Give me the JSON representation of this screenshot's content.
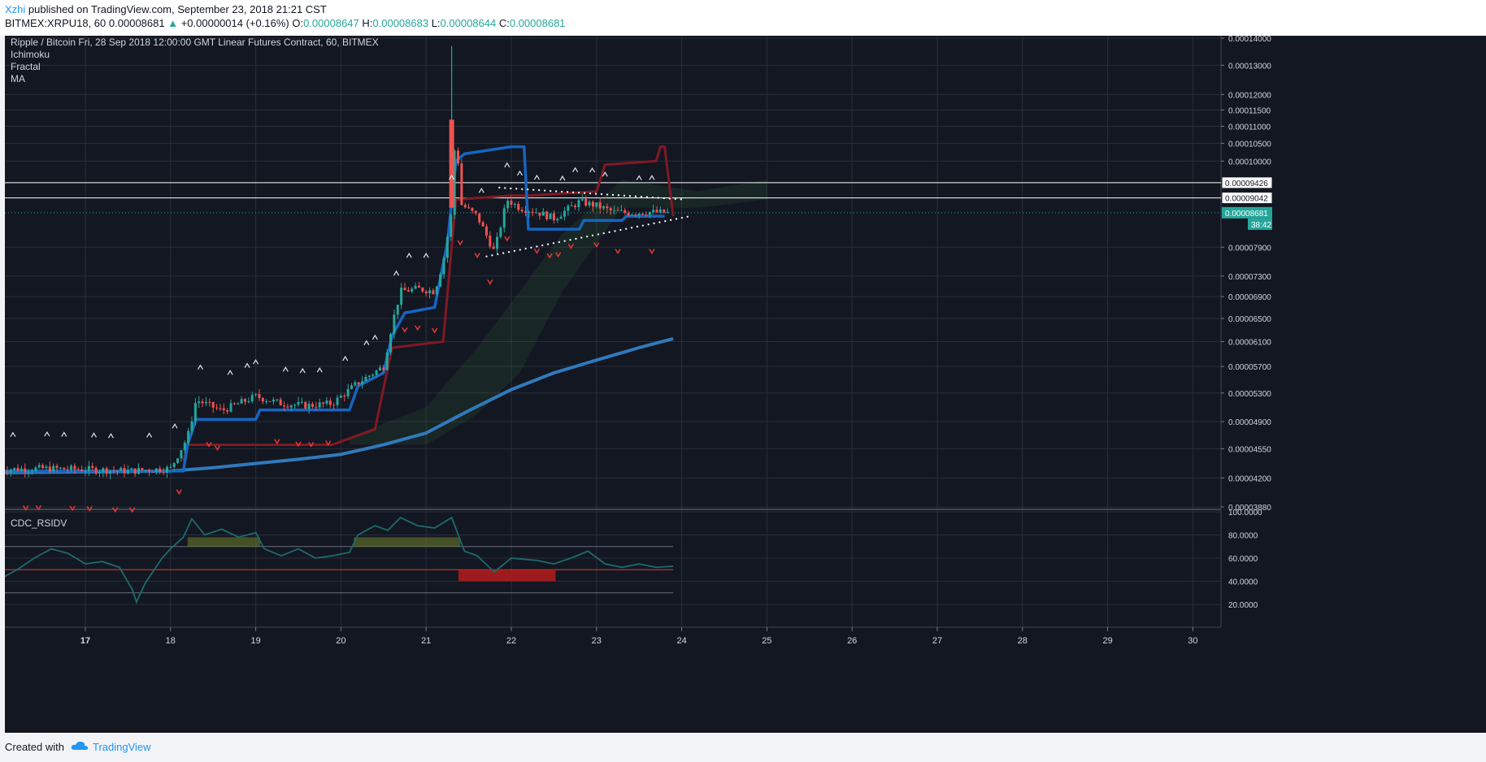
{
  "header": {
    "author": "Xzhi",
    "published": " published on TradingView.com, September 23, 2018 21:21 CST",
    "symbol": "BITMEX:XRPU18, 60",
    "last": "0.00008681",
    "change": "+0.00000014 (+0.16%)",
    "open_label": "O:",
    "open": "0.00008647",
    "high_label": "H:",
    "high": "0.00008683",
    "low_label": "L:",
    "low": "0.00008644",
    "close_label": "C:",
    "close": "0.00008681"
  },
  "legend": {
    "title": "Ripple / Bitcoin Fri, 28 Sep 2018 12:00:00 GMT Linear Futures Contract, 60, BITMEX",
    "indicators": [
      "Ichimoku",
      "Fractal",
      "MA"
    ]
  },
  "indicator_pane": {
    "name": "CDC_RSIDV"
  },
  "footer": {
    "created": "Created with",
    "brand": "TradingView"
  },
  "colors": {
    "background": "#131722",
    "grid": "#2a2e39",
    "up": "#26a69a",
    "down": "#ef5350",
    "kijun": "#1565c0",
    "senkou_b": "#801922",
    "ma": "#3179bb",
    "rsi": "#1d6b6b",
    "rsi_level": "#e53935"
  },
  "icons": [
    "tradingview-cloud-icon"
  ],
  "chart_data": [
    {
      "type": "candlestick",
      "title": "Ripple / Bitcoin",
      "y_scale": "log",
      "y_ticks": [
        "0.00014000",
        "0.00013000",
        "0.00012000",
        "0.00011500",
        "0.00011000",
        "0.00010500",
        "0.00010000",
        "0.00007900",
        "0.00007300",
        "0.00006900",
        "0.00006500",
        "0.00006100",
        "0.00005700",
        "0.00005300",
        "0.00004900",
        "0.00004550",
        "0.00004200",
        "0.00003880"
      ],
      "x_ticks": [
        "17",
        "18",
        "19",
        "20",
        "21",
        "22",
        "23",
        "24",
        "25",
        "26",
        "27",
        "28",
        "29",
        "30"
      ],
      "horizontal_lines": [
        {
          "label": "0.00009426",
          "value": 9.426e-05
        },
        {
          "label": "0.00009042",
          "value": 9.042e-05
        }
      ],
      "current_price": {
        "label": "0.00008681",
        "value": 8.681e-05,
        "countdown": "38:42"
      },
      "ohlc_last": {
        "open": 8.647e-05,
        "high": 8.683e-05,
        "low": 8.644e-05,
        "close": 8.681e-05
      },
      "price_path": [
        {
          "day": 16.0,
          "price": 4.3e-05
        },
        {
          "day": 16.5,
          "price": 4.31e-05
        },
        {
          "day": 17.0,
          "price": 4.3e-05
        },
        {
          "day": 17.5,
          "price": 4.28e-05
        },
        {
          "day": 18.0,
          "price": 4.31e-05
        },
        {
          "day": 18.2,
          "price": 4.7e-05
        },
        {
          "day": 18.3,
          "price": 5.2e-05
        },
        {
          "day": 18.6,
          "price": 5.05e-05
        },
        {
          "day": 19.0,
          "price": 5.25e-05
        },
        {
          "day": 19.3,
          "price": 5.15e-05
        },
        {
          "day": 19.6,
          "price": 5.12e-05
        },
        {
          "day": 19.9,
          "price": 5.15e-05
        },
        {
          "day": 20.2,
          "price": 5.45e-05
        },
        {
          "day": 20.5,
          "price": 5.7e-05
        },
        {
          "day": 20.6,
          "price": 6.4e-05
        },
        {
          "day": 20.7,
          "price": 7e-05
        },
        {
          "day": 20.9,
          "price": 7.05e-05
        },
        {
          "day": 21.1,
          "price": 7e-05
        },
        {
          "day": 21.2,
          "price": 7.6e-05
        },
        {
          "day": 21.3,
          "price": 8.7e-05
        },
        {
          "day": 21.35,
          "price": 0.000112
        },
        {
          "day": 21.4,
          "price": 8.9e-05
        },
        {
          "day": 21.6,
          "price": 8.6e-05
        },
        {
          "day": 21.8,
          "price": 7.8e-05
        },
        {
          "day": 21.95,
          "price": 9e-05
        },
        {
          "day": 22.1,
          "price": 8.8e-05
        },
        {
          "day": 22.3,
          "price": 8.7e-05
        },
        {
          "day": 22.5,
          "price": 8.55e-05
        },
        {
          "day": 22.8,
          "price": 8.95e-05
        },
        {
          "day": 23.0,
          "price": 8.85e-05
        },
        {
          "day": 23.2,
          "price": 8.7e-05
        },
        {
          "day": 23.4,
          "price": 8.68e-05
        },
        {
          "day": 23.6,
          "price": 8.7e-05
        },
        {
          "day": 23.85,
          "price": 8.68e-05
        }
      ],
      "wick_high": {
        "day": 21.3,
        "price": 0.000137
      },
      "kijun": [
        [
          16.0,
          4.28e-05
        ],
        [
          18.15,
          4.28e-05
        ],
        [
          18.2,
          4.6e-05
        ],
        [
          18.3,
          4.93e-05
        ],
        [
          19.0,
          4.93e-05
        ],
        [
          19.05,
          5.06e-05
        ],
        [
          20.1,
          5.06e-05
        ],
        [
          20.2,
          5.4e-05
        ],
        [
          20.5,
          5.6e-05
        ],
        [
          20.6,
          6.2e-05
        ],
        [
          20.75,
          6.6e-05
        ],
        [
          21.1,
          6.7e-05
        ],
        [
          21.25,
          8e-05
        ],
        [
          21.35,
          0.0001
        ],
        [
          21.45,
          0.000102
        ],
        [
          22.0,
          0.000104
        ],
        [
          22.15,
          0.000104
        ],
        [
          22.2,
          8.3e-05
        ],
        [
          22.8,
          8.3e-05
        ],
        [
          22.85,
          8.5e-05
        ],
        [
          23.3,
          8.5e-05
        ],
        [
          23.35,
          8.6e-05
        ],
        [
          23.8,
          8.6e-05
        ]
      ],
      "senkou_b": [
        [
          18.15,
          4.4e-05
        ],
        [
          18.2,
          4.6e-05
        ],
        [
          19.9,
          4.6e-05
        ],
        [
          20.4,
          4.8e-05
        ],
        [
          20.6,
          6e-05
        ],
        [
          21.2,
          6.1e-05
        ],
        [
          21.35,
          9e-05
        ],
        [
          22.0,
          9.1e-05
        ],
        [
          22.2,
          9.1e-05
        ],
        [
          23.0,
          9.2e-05
        ],
        [
          23.1,
          9.9e-05
        ],
        [
          23.7,
          0.0001
        ],
        [
          23.75,
          0.000104
        ],
        [
          23.8,
          0.000104
        ],
        [
          23.9,
          8.6e-05
        ]
      ],
      "ma": [
        [
          16.0,
          4.26e-05
        ],
        [
          17.0,
          4.27e-05
        ],
        [
          18.0,
          4.28e-05
        ],
        [
          18.5,
          4.32e-05
        ],
        [
          19.0,
          4.37e-05
        ],
        [
          19.5,
          4.42e-05
        ],
        [
          20.0,
          4.48e-05
        ],
        [
          20.5,
          4.6e-05
        ],
        [
          21.0,
          4.75e-05
        ],
        [
          21.5,
          5.05e-05
        ],
        [
          22.0,
          5.35e-05
        ],
        [
          22.5,
          5.6e-05
        ],
        [
          23.0,
          5.8e-05
        ],
        [
          23.5,
          6e-05
        ],
        [
          23.9,
          6.15e-05
        ]
      ],
      "triangle": {
        "upper": [
          [
            21.85,
            9.3e-05
          ],
          [
            24.05,
            9e-05
          ]
        ],
        "lower": [
          [
            21.7,
            7.7e-05
          ],
          [
            24.1,
            8.6e-05
          ]
        ]
      },
      "fractals_up": [
        16.15,
        16.55,
        16.75,
        17.1,
        17.3,
        17.75,
        18.05,
        18.35,
        18.7,
        18.9,
        19.0,
        19.35,
        19.55,
        19.75,
        20.05,
        20.3,
        20.4,
        20.65,
        20.8,
        21.0,
        21.3,
        21.65,
        21.95,
        22.1,
        22.3,
        22.6,
        22.75,
        22.95,
        23.1,
        23.5,
        23.65
      ],
      "fractals_down": [
        16.3,
        16.45,
        16.85,
        17.05,
        17.35,
        17.55,
        18.1,
        18.45,
        18.55,
        19.25,
        19.5,
        19.65,
        19.85,
        20.75,
        20.9,
        21.1,
        21.4,
        21.6,
        21.75,
        21.95,
        22.3,
        22.45,
        22.55,
        22.7,
        23.0,
        23.25,
        23.65
      ]
    },
    {
      "type": "line",
      "title": "CDC_RSIDV",
      "y_ticks": [
        "100.0000",
        "80.0000",
        "60.0000",
        "40.0000",
        "20.0000"
      ],
      "levels": [
        70,
        50,
        30
      ],
      "series": [
        {
          "values": [
            [
              16.0,
              42
            ],
            [
              16.2,
              50
            ],
            [
              16.4,
              60
            ],
            [
              16.6,
              68
            ],
            [
              16.8,
              64
            ],
            [
              17.0,
              55
            ],
            [
              17.2,
              57
            ],
            [
              17.4,
              52
            ],
            [
              17.55,
              33
            ],
            [
              17.6,
              22
            ],
            [
              17.7,
              38
            ],
            [
              17.9,
              60
            ],
            [
              18.0,
              68
            ],
            [
              18.15,
              78
            ],
            [
              18.25,
              94
            ],
            [
              18.4,
              80
            ],
            [
              18.6,
              85
            ],
            [
              18.8,
              78
            ],
            [
              19.0,
              82
            ],
            [
              19.1,
              68
            ],
            [
              19.3,
              62
            ],
            [
              19.5,
              68
            ],
            [
              19.7,
              60
            ],
            [
              19.9,
              62
            ],
            [
              20.1,
              65
            ],
            [
              20.2,
              80
            ],
            [
              20.4,
              88
            ],
            [
              20.55,
              84
            ],
            [
              20.7,
              95
            ],
            [
              20.9,
              88
            ],
            [
              21.1,
              86
            ],
            [
              21.3,
              95
            ],
            [
              21.45,
              66
            ],
            [
              21.6,
              62
            ],
            [
              21.8,
              48
            ],
            [
              22.0,
              60
            ],
            [
              22.3,
              58
            ],
            [
              22.5,
              55
            ],
            [
              22.7,
              60
            ],
            [
              22.9,
              66
            ],
            [
              23.1,
              55
            ],
            [
              23.3,
              52
            ],
            [
              23.5,
              55
            ],
            [
              23.7,
              52
            ],
            [
              23.9,
              53
            ]
          ]
        }
      ]
    }
  ]
}
